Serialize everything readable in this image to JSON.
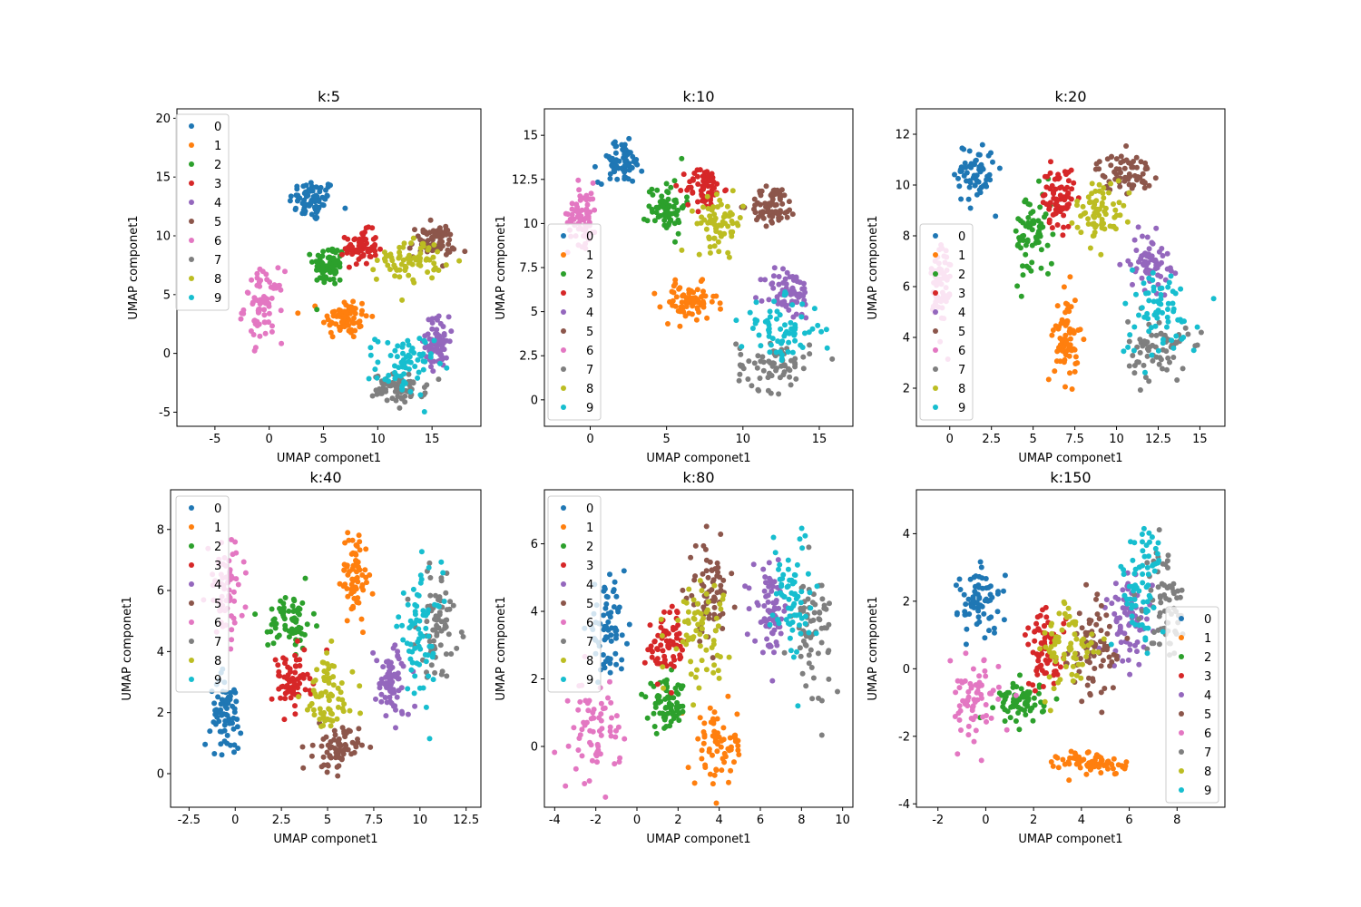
{
  "chart_data": [
    {
      "type": "scatter",
      "title": "k:5",
      "xlabel": "UMAP componet1",
      "ylabel": "UMAP componet1",
      "xlim": [
        -8.5,
        19.5
      ],
      "ylim": [
        -6.2,
        20.8
      ],
      "xticks": [
        -5,
        0,
        5,
        10,
        15
      ],
      "yticks": [
        -5,
        0,
        5,
        10,
        15,
        20
      ],
      "legend_position": "upper-left",
      "clusters": [
        {
          "label": "0",
          "x": 4.0,
          "y": 13.0,
          "sx": 1.8,
          "sy": 1.5
        },
        {
          "label": "1",
          "x": 7.0,
          "y": 3.0,
          "sx": 1.8,
          "sy": 1.5
        },
        {
          "label": "2",
          "x": 5.5,
          "y": 7.5,
          "sx": 1.2,
          "sy": 1.5
        },
        {
          "label": "3",
          "x": 8.5,
          "y": 9.0,
          "sx": 1.2,
          "sy": 1.2
        },
        {
          "label": "4",
          "x": 15.5,
          "y": 1.0,
          "sx": 0.9,
          "sy": 1.8
        },
        {
          "label": "5",
          "x": 15.0,
          "y": 9.5,
          "sx": 1.8,
          "sy": 1.2
        },
        {
          "label": "6",
          "x": -0.5,
          "y": 4.0,
          "sx": 1.5,
          "sy": 2.5
        },
        {
          "label": "7",
          "x": 12.0,
          "y": -3.0,
          "sx": 2.0,
          "sy": 1.0
        },
        {
          "label": "8",
          "x": 13.0,
          "y": 8.0,
          "sx": 2.5,
          "sy": 1.5
        },
        {
          "label": "9",
          "x": 12.5,
          "y": -1.0,
          "sx": 2.2,
          "sy": 2.2
        }
      ]
    },
    {
      "type": "scatter",
      "title": "k:10",
      "xlabel": "UMAP componet1",
      "ylabel": "UMAP componet1",
      "xlim": [
        -3.0,
        17.2
      ],
      "ylim": [
        -1.5,
        16.5
      ],
      "xticks": [
        0,
        5,
        10,
        15
      ],
      "yticks": [
        0.0,
        2.5,
        5.0,
        7.5,
        10.0,
        12.5,
        15.0
      ],
      "legend_position": "lower-left",
      "clusters": [
        {
          "label": "0",
          "x": 2.0,
          "y": 13.5,
          "sx": 1.2,
          "sy": 1.0
        },
        {
          "label": "1",
          "x": 6.5,
          "y": 5.5,
          "sx": 1.5,
          "sy": 0.9
        },
        {
          "label": "2",
          "x": 5.0,
          "y": 11.0,
          "sx": 1.0,
          "sy": 1.3
        },
        {
          "label": "3",
          "x": 7.5,
          "y": 12.0,
          "sx": 1.0,
          "sy": 1.0
        },
        {
          "label": "4",
          "x": 13.0,
          "y": 6.0,
          "sx": 1.3,
          "sy": 1.2
        },
        {
          "label": "5",
          "x": 12.0,
          "y": 11.0,
          "sx": 1.3,
          "sy": 0.9
        },
        {
          "label": "6",
          "x": -0.5,
          "y": 10.5,
          "sx": 0.8,
          "sy": 1.5
        },
        {
          "label": "7",
          "x": 12.0,
          "y": 2.0,
          "sx": 2.0,
          "sy": 1.2
        },
        {
          "label": "8",
          "x": 8.5,
          "y": 10.0,
          "sx": 1.3,
          "sy": 1.2
        },
        {
          "label": "9",
          "x": 12.5,
          "y": 4.0,
          "sx": 2.2,
          "sy": 1.4
        }
      ]
    },
    {
      "type": "scatter",
      "title": "k:20",
      "xlabel": "UMAP componet1",
      "ylabel": "UMAP componet1",
      "xlim": [
        -2.0,
        16.5
      ],
      "ylim": [
        0.5,
        13.0
      ],
      "xticks": [
        0.0,
        2.5,
        5.0,
        7.5,
        10.0,
        12.5,
        15.0
      ],
      "yticks": [
        2,
        4,
        6,
        8,
        10,
        12
      ],
      "legend_position": "lower-left",
      "clusters": [
        {
          "label": "0",
          "x": 1.5,
          "y": 10.5,
          "sx": 1.0,
          "sy": 1.0
        },
        {
          "label": "1",
          "x": 7.0,
          "y": 4.0,
          "sx": 0.6,
          "sy": 1.5
        },
        {
          "label": "2",
          "x": 5.0,
          "y": 8.0,
          "sx": 1.0,
          "sy": 1.5
        },
        {
          "label": "3",
          "x": 6.5,
          "y": 9.5,
          "sx": 0.8,
          "sy": 1.0
        },
        {
          "label": "4",
          "x": 12.0,
          "y": 7.0,
          "sx": 1.0,
          "sy": 0.9
        },
        {
          "label": "5",
          "x": 10.5,
          "y": 10.5,
          "sx": 1.4,
          "sy": 0.6
        },
        {
          "label": "6",
          "x": -0.5,
          "y": 6.0,
          "sx": 0.5,
          "sy": 1.8
        },
        {
          "label": "7",
          "x": 12.5,
          "y": 3.5,
          "sx": 1.5,
          "sy": 1.0
        },
        {
          "label": "8",
          "x": 9.0,
          "y": 9.0,
          "sx": 1.2,
          "sy": 1.0
        },
        {
          "label": "9",
          "x": 12.5,
          "y": 5.0,
          "sx": 2.0,
          "sy": 1.5
        }
      ]
    },
    {
      "type": "scatter",
      "title": "k:40",
      "xlabel": "UMAP componet1",
      "ylabel": "UMAP componet1",
      "xlim": [
        -3.5,
        13.3
      ],
      "ylim": [
        -1.1,
        9.3
      ],
      "xticks": [
        -2.5,
        0.0,
        2.5,
        5.0,
        7.5,
        10.0,
        12.5
      ],
      "yticks": [
        0,
        2,
        4,
        6,
        8
      ],
      "legend_position": "upper-left",
      "clusters": [
        {
          "label": "0",
          "x": -0.5,
          "y": 2.0,
          "sx": 0.7,
          "sy": 1.0
        },
        {
          "label": "1",
          "x": 6.5,
          "y": 6.5,
          "sx": 0.6,
          "sy": 1.2
        },
        {
          "label": "2",
          "x": 3.0,
          "y": 5.0,
          "sx": 1.0,
          "sy": 0.8
        },
        {
          "label": "3",
          "x": 3.0,
          "y": 3.0,
          "sx": 0.9,
          "sy": 0.8
        },
        {
          "label": "4",
          "x": 8.5,
          "y": 3.0,
          "sx": 0.8,
          "sy": 1.0
        },
        {
          "label": "5",
          "x": 5.5,
          "y": 0.8,
          "sx": 1.0,
          "sy": 0.6
        },
        {
          "label": "6",
          "x": -0.5,
          "y": 6.0,
          "sx": 0.8,
          "sy": 1.3
        },
        {
          "label": "7",
          "x": 11.0,
          "y": 5.0,
          "sx": 1.0,
          "sy": 1.5
        },
        {
          "label": "8",
          "x": 5.0,
          "y": 2.5,
          "sx": 1.2,
          "sy": 1.2
        },
        {
          "label": "9",
          "x": 10.0,
          "y": 4.5,
          "sx": 1.0,
          "sy": 1.8
        }
      ]
    },
    {
      "type": "scatter",
      "title": "k:80",
      "xlabel": "UMAP componet1",
      "ylabel": "UMAP componet1",
      "xlim": [
        -4.5,
        10.5
      ],
      "ylim": [
        -1.8,
        7.6
      ],
      "xticks": [
        -4,
        -2,
        0,
        2,
        4,
        6,
        8,
        10
      ],
      "yticks": [
        0,
        2,
        4,
        6
      ],
      "legend_position": "upper-left",
      "clusters": [
        {
          "label": "0",
          "x": -1.5,
          "y": 3.5,
          "sx": 0.8,
          "sy": 1.0
        },
        {
          "label": "1",
          "x": 4.0,
          "y": 0.0,
          "sx": 1.0,
          "sy": 1.0
        },
        {
          "label": "2",
          "x": 1.5,
          "y": 1.2,
          "sx": 0.8,
          "sy": 0.6
        },
        {
          "label": "3",
          "x": 1.5,
          "y": 3.0,
          "sx": 0.8,
          "sy": 0.9
        },
        {
          "label": "4",
          "x": 6.5,
          "y": 4.0,
          "sx": 0.7,
          "sy": 1.0
        },
        {
          "label": "5",
          "x": 3.5,
          "y": 4.5,
          "sx": 0.8,
          "sy": 1.2
        },
        {
          "label": "6",
          "x": -2.0,
          "y": 0.5,
          "sx": 1.0,
          "sy": 1.2
        },
        {
          "label": "7",
          "x": 8.5,
          "y": 3.5,
          "sx": 0.8,
          "sy": 1.5
        },
        {
          "label": "8",
          "x": 3.0,
          "y": 3.5,
          "sx": 1.2,
          "sy": 1.2
        },
        {
          "label": "9",
          "x": 7.5,
          "y": 4.5,
          "sx": 0.8,
          "sy": 1.7
        }
      ]
    },
    {
      "type": "scatter",
      "title": "k:150",
      "xlabel": "UMAP componet1",
      "ylabel": "UMAP componet1",
      "xlim": [
        -2.9,
        10.0
      ],
      "ylim": [
        -4.1,
        5.3
      ],
      "xticks": [
        -2,
        0,
        2,
        4,
        6,
        8
      ],
      "yticks": [
        -4,
        -2,
        0,
        2,
        4
      ],
      "legend_position": "lower-right",
      "clusters": [
        {
          "label": "0",
          "x": -0.2,
          "y": 2.0,
          "sx": 0.8,
          "sy": 0.8
        },
        {
          "label": "1",
          "x": 4.5,
          "y": -2.8,
          "sx": 1.2,
          "sy": 0.3
        },
        {
          "label": "2",
          "x": 1.5,
          "y": -1.0,
          "sx": 0.8,
          "sy": 0.5
        },
        {
          "label": "3",
          "x": 2.5,
          "y": 0.5,
          "sx": 0.7,
          "sy": 1.0
        },
        {
          "label": "4",
          "x": 6.0,
          "y": 1.5,
          "sx": 0.8,
          "sy": 1.2
        },
        {
          "label": "5",
          "x": 4.5,
          "y": 0.5,
          "sx": 0.8,
          "sy": 1.2
        },
        {
          "label": "6",
          "x": -0.5,
          "y": -1.0,
          "sx": 0.9,
          "sy": 1.0
        },
        {
          "label": "7",
          "x": 7.5,
          "y": 2.0,
          "sx": 0.7,
          "sy": 1.3
        },
        {
          "label": "8",
          "x": 3.5,
          "y": 0.5,
          "sx": 1.0,
          "sy": 1.3
        },
        {
          "label": "9",
          "x": 6.5,
          "y": 2.5,
          "sx": 0.8,
          "sy": 1.5
        }
      ]
    }
  ],
  "series_colors": [
    "#1f77b4",
    "#ff7f0e",
    "#2ca02c",
    "#d62728",
    "#9467bd",
    "#8c564b",
    "#e377c2",
    "#7f7f7f",
    "#bcbd22",
    "#17becf"
  ]
}
